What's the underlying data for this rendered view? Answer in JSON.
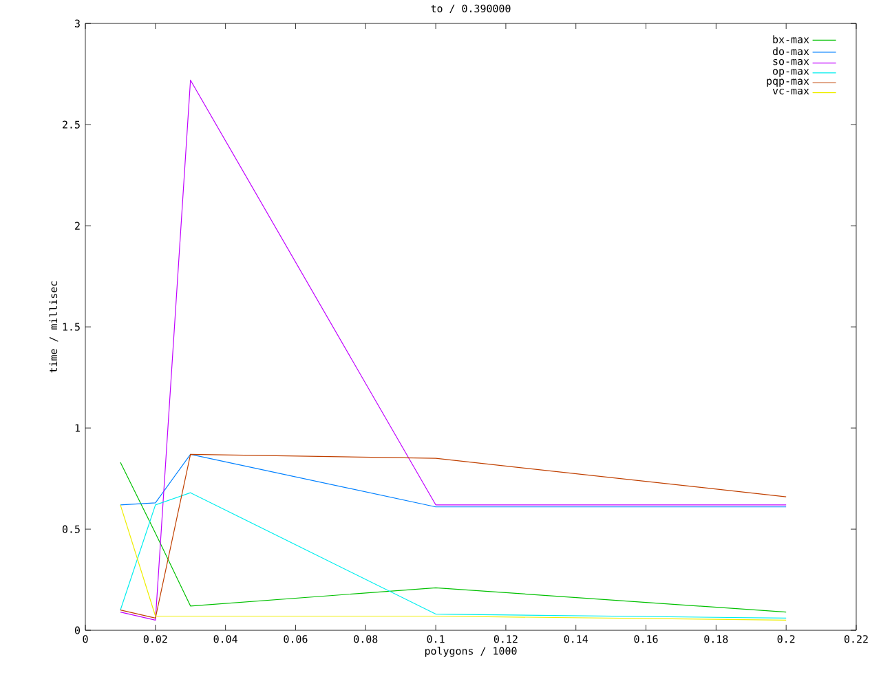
{
  "chart_data": {
    "type": "line",
    "title": "to / 0.390000",
    "xlabel": "polygons / 1000",
    "ylabel": "time / millisec",
    "x": [
      0.01,
      0.02,
      0.03,
      0.1,
      0.2
    ],
    "xlim": [
      0,
      0.22
    ],
    "xticks": [
      0,
      0.02,
      0.04,
      0.06,
      0.08,
      0.1,
      0.12,
      0.14,
      0.16,
      0.18,
      0.2,
      0.22
    ],
    "ylim": [
      0,
      3
    ],
    "yticks": [
      0,
      0.5,
      1,
      1.5,
      2,
      2.5,
      3
    ],
    "grid": false,
    "legend": "top right",
    "marker": "none",
    "line_style": "solid",
    "series": [
      {
        "name": "bx-max",
        "color": "#00c000",
        "values": [
          0.83,
          0.48,
          0.12,
          0.21,
          0.09
        ]
      },
      {
        "name": "do-max",
        "color": "#0080ff",
        "values": [
          0.62,
          0.63,
          0.87,
          0.61,
          0.61
        ]
      },
      {
        "name": "so-max",
        "color": "#c000ff",
        "values": [
          0.09,
          0.05,
          2.72,
          0.62,
          0.62
        ]
      },
      {
        "name": "op-max",
        "color": "#00eeee",
        "values": [
          0.1,
          0.62,
          0.68,
          0.08,
          0.06
        ]
      },
      {
        "name": "pqp-max",
        "color": "#c04000",
        "values": [
          0.1,
          0.06,
          0.87,
          0.85,
          0.66
        ]
      },
      {
        "name": "vc-max",
        "color": "#eeee00",
        "values": [
          0.62,
          0.07,
          0.07,
          0.07,
          0.05
        ]
      }
    ]
  }
}
